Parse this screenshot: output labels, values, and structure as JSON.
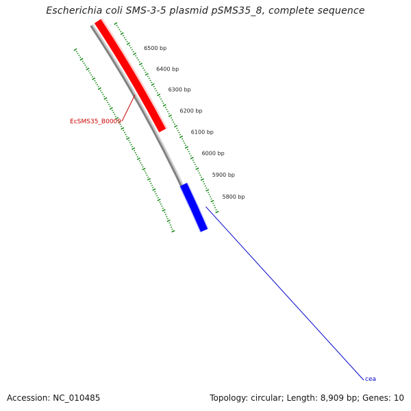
{
  "title": "Escherichia coli SMS-3-5 plasmid pSMS35_8, complete sequence",
  "accession": "Accession: NC_010485",
  "summary": "Topology: circular; Length: 8,909 bp; Genes: 10",
  "colors": {
    "backbone": "#808080",
    "tick": "#1a8a1a",
    "forward_gene": "#ff0000",
    "reverse_gene": "#0000ff",
    "forward_label": "#cc0000",
    "reverse_label": "#0000cc"
  },
  "ruler": {
    "labels": [
      {
        "bp": 6500,
        "text": "6500 bp"
      },
      {
        "bp": 6400,
        "text": "6400 bp"
      },
      {
        "bp": 6300,
        "text": "6300 bp"
      },
      {
        "bp": 6200,
        "text": "6200 bp"
      },
      {
        "bp": 6100,
        "text": "6100 bp"
      },
      {
        "bp": 6000,
        "text": "6000 bp"
      },
      {
        "bp": 5900,
        "text": "5900 bp"
      },
      {
        "bp": 5800,
        "text": "5800 bp"
      }
    ]
  },
  "genes": [
    {
      "name": "EcSMS35_B0009",
      "strand": "forward",
      "color_key": "forward_gene",
      "label_color_key": "forward_label"
    },
    {
      "name": "cea",
      "strand": "reverse",
      "color_key": "reverse_gene",
      "label_color_key": "reverse_label"
    }
  ]
}
